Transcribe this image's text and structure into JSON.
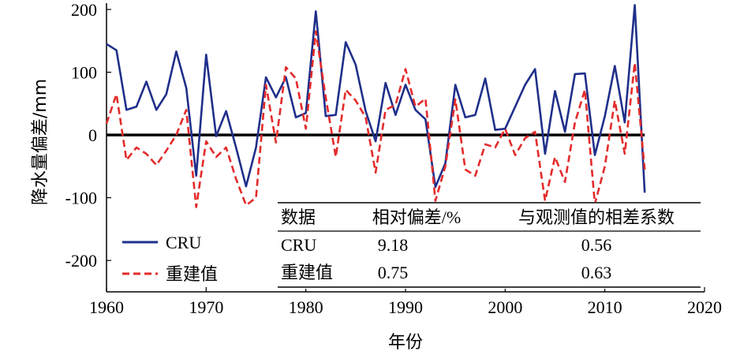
{
  "chart_data": {
    "type": "line",
    "xlabel": "年份",
    "ylabel": "降水量偏差/mm",
    "xlim": [
      1960,
      2020
    ],
    "ylim": [
      -250,
      200
    ],
    "x_ticks": [
      1960,
      1970,
      1980,
      1990,
      2000,
      2010,
      2020
    ],
    "y_ticks": [
      200,
      100,
      0,
      -100,
      -200
    ],
    "y_tick_labels": [
      "200",
      "100",
      "0",
      "-100",
      "-200"
    ],
    "reference_line": 0,
    "legend_position": "bottom-left",
    "series": [
      {
        "name": "CRU",
        "color": "#1f2f8a",
        "style": "solid",
        "x": [
          1960,
          1961,
          1962,
          1963,
          1964,
          1965,
          1966,
          1967,
          1968,
          1969,
          1970,
          1971,
          1972,
          1973,
          1974,
          1975,
          1976,
          1977,
          1978,
          1979,
          1980,
          1981,
          1982,
          1983,
          1984,
          1985,
          1986,
          1987,
          1988,
          1989,
          1990,
          1991,
          1992,
          1993,
          1994,
          1995,
          1996,
          1997,
          1998,
          1999,
          2000,
          2001,
          2002,
          2003,
          2004,
          2005,
          2006,
          2007,
          2008,
          2009,
          2010,
          2011,
          2012,
          2013,
          2014
        ],
        "y": [
          145,
          135,
          40,
          45,
          85,
          40,
          65,
          133,
          75,
          -65,
          128,
          -2,
          38,
          -20,
          -82,
          -20,
          92,
          60,
          92,
          28,
          35,
          197,
          30,
          32,
          148,
          112,
          38,
          -10,
          83,
          32,
          80,
          40,
          25,
          -83,
          -45,
          80,
          28,
          32,
          90,
          8,
          10,
          45,
          80,
          105,
          -30,
          70,
          5,
          97,
          98,
          -32,
          30,
          110,
          20,
          207,
          -92
        ]
      },
      {
        "name": "重建值",
        "color": "#e32b2b",
        "style": "dashed",
        "x": [
          1960,
          1961,
          1962,
          1963,
          1964,
          1965,
          1966,
          1967,
          1968,
          1969,
          1970,
          1971,
          1972,
          1973,
          1974,
          1975,
          1976,
          1977,
          1978,
          1979,
          1980,
          1981,
          1982,
          1983,
          1984,
          1985,
          1986,
          1987,
          1988,
          1989,
          1990,
          1991,
          1992,
          1993,
          1994,
          1995,
          1996,
          1997,
          1998,
          1999,
          2000,
          2001,
          2002,
          2003,
          2004,
          2005,
          2006,
          2007,
          2008,
          2009,
          2010,
          2011,
          2012,
          2013,
          2014
        ],
        "y": [
          18,
          65,
          -40,
          -20,
          -30,
          -48,
          -25,
          0,
          40,
          -115,
          -10,
          -35,
          -20,
          -70,
          -112,
          -100,
          80,
          -12,
          108,
          90,
          10,
          165,
          60,
          -35,
          72,
          55,
          28,
          -60,
          40,
          48,
          105,
          45,
          58,
          -105,
          -50,
          57,
          -55,
          -65,
          -15,
          -20,
          10,
          -32,
          -5,
          5,
          -105,
          -35,
          -75,
          20,
          72,
          -110,
          -50,
          55,
          -30,
          115,
          -55
        ]
      }
    ],
    "table": {
      "headers": [
        "数据",
        "相对偏差/%",
        "与观测值的相差系数"
      ],
      "rows": [
        [
          "CRU",
          "9.18",
          "0.56"
        ],
        [
          "重建值",
          "0.75",
          "0.63"
        ]
      ]
    }
  }
}
